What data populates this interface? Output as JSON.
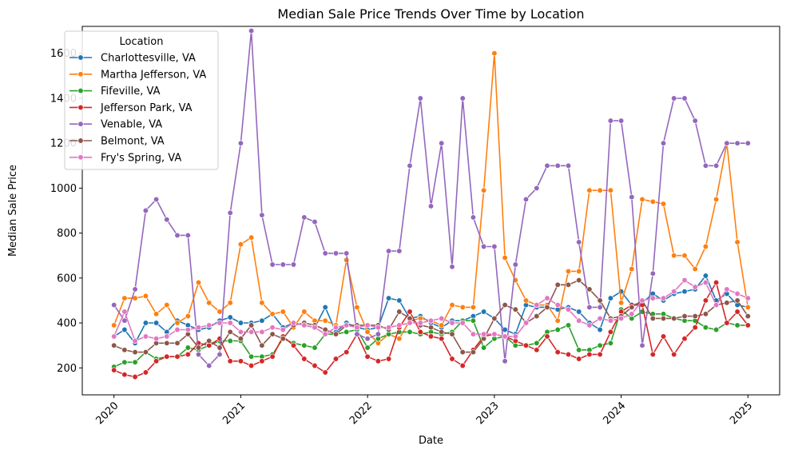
{
  "chart_data": {
    "type": "line",
    "title": "Median Sale Price Trends Over Time by Location",
    "xlabel": "Date",
    "ylabel": "Median Sale Price",
    "x_ticks": [
      "2020",
      "2021",
      "2022",
      "2023",
      "2024",
      "2025"
    ],
    "y_ticks": [
      200,
      400,
      600,
      800,
      1000,
      1200,
      1400,
      1600
    ],
    "ylim": [
      80,
      1720
    ],
    "xlim": [
      "2019-10-01",
      "2025-04-01"
    ],
    "grid": false,
    "legend": {
      "title": "Location",
      "position": "top-left"
    },
    "x": [
      "2020-01",
      "2020-02",
      "2020-03",
      "2020-04",
      "2020-05",
      "2020-06",
      "2020-07",
      "2020-08",
      "2020-09",
      "2020-10",
      "2020-11",
      "2020-12",
      "2021-01",
      "2021-02",
      "2021-03",
      "2021-04",
      "2021-05",
      "2021-06",
      "2021-07",
      "2021-08",
      "2021-09",
      "2021-10",
      "2021-11",
      "2021-12",
      "2022-01",
      "2022-02",
      "2022-03",
      "2022-04",
      "2022-05",
      "2022-06",
      "2022-07",
      "2022-08",
      "2022-09",
      "2022-10",
      "2022-11",
      "2022-12",
      "2023-01",
      "2023-02",
      "2023-03",
      "2023-04",
      "2023-05",
      "2023-06",
      "2023-07",
      "2023-08",
      "2023-09",
      "2023-10",
      "2023-11",
      "2023-12",
      "2024-01",
      "2024-02",
      "2024-03",
      "2024-04",
      "2024-05",
      "2024-06",
      "2024-07",
      "2024-08",
      "2024-09",
      "2024-10",
      "2024-11",
      "2024-12",
      "2025-01"
    ],
    "series": [
      {
        "name": "Charlottesville, VA",
        "color": "#1f77b4",
        "values": [
          340,
          370,
          310,
          400,
          400,
          360,
          410,
          390,
          370,
          380,
          410,
          425,
          400,
          400,
          410,
          440,
          380,
          400,
          390,
          380,
          470,
          360,
          400,
          380,
          370,
          380,
          510,
          500,
          420,
          430,
          400,
          380,
          410,
          410,
          430,
          450,
          420,
          370,
          350,
          480,
          470,
          470,
          460,
          470,
          450,
          400,
          370,
          510,
          540,
          480,
          490,
          530,
          500,
          530,
          540,
          550,
          610,
          500,
          530,
          480,
          470
        ]
      },
      {
        "name": "Martha Jefferson, VA",
        "color": "#ff7f0e",
        "values": [
          390,
          510,
          510,
          520,
          440,
          480,
          400,
          430,
          580,
          490,
          450,
          490,
          750,
          780,
          490,
          440,
          450,
          380,
          450,
          410,
          410,
          390,
          680,
          470,
          360,
          310,
          350,
          330,
          410,
          420,
          410,
          390,
          480,
          470,
          470,
          990,
          1600,
          690,
          590,
          500,
          480,
          480,
          410,
          630,
          630,
          990,
          990,
          990,
          490,
          640,
          950,
          940,
          930,
          700,
          700,
          640,
          740,
          950,
          1200,
          760,
          470
        ]
      },
      {
        "name": "Fifeville, VA",
        "color": "#2ca02c",
        "values": [
          205,
          225,
          225,
          270,
          240,
          250,
          250,
          290,
          280,
          300,
          320,
          320,
          320,
          250,
          250,
          260,
          330,
          310,
          300,
          290,
          350,
          350,
          360,
          370,
          290,
          330,
          350,
          360,
          360,
          350,
          360,
          350,
          360,
          410,
          410,
          290,
          330,
          340,
          300,
          300,
          310,
          360,
          370,
          390,
          280,
          280,
          300,
          310,
          460,
          420,
          450,
          440,
          440,
          420,
          410,
          410,
          380,
          370,
          400,
          390,
          390
        ]
      },
      {
        "name": "Jefferson Park, VA",
        "color": "#d62728",
        "values": [
          190,
          170,
          160,
          180,
          230,
          250,
          250,
          260,
          310,
          300,
          330,
          230,
          230,
          210,
          230,
          250,
          340,
          300,
          240,
          210,
          180,
          240,
          270,
          350,
          250,
          230,
          240,
          380,
          450,
          360,
          340,
          330,
          240,
          210,
          280,
          340,
          350,
          340,
          320,
          300,
          280,
          340,
          270,
          260,
          240,
          260,
          260,
          360,
          450,
          480,
          480,
          260,
          340,
          260,
          330,
          380,
          500,
          580,
          400,
          450,
          390
        ]
      },
      {
        "name": "Venable, VA",
        "color": "#9467bd",
        "values": [
          480,
          410,
          550,
          900,
          950,
          860,
          790,
          790,
          260,
          210,
          260,
          890,
          1200,
          1700,
          880,
          660,
          660,
          660,
          870,
          850,
          710,
          710,
          710,
          350,
          330,
          350,
          720,
          720,
          1100,
          1400,
          920,
          1200,
          650,
          1400,
          870,
          740,
          740,
          230,
          660,
          950,
          1000,
          1100,
          1100,
          1100,
          760,
          470,
          470,
          1300,
          1300,
          960,
          300,
          620,
          1200,
          1400,
          1400,
          1300,
          1100,
          1100,
          1200,
          1200,
          1200
        ]
      },
      {
        "name": "Belmont, VA",
        "color": "#8c564b",
        "values": [
          300,
          280,
          270,
          270,
          310,
          310,
          310,
          350,
          290,
          320,
          290,
          360,
          330,
          390,
          300,
          350,
          330,
          390,
          400,
          390,
          370,
          350,
          390,
          390,
          390,
          390,
          370,
          450,
          420,
          390,
          380,
          360,
          350,
          270,
          270,
          330,
          420,
          480,
          460,
          400,
          430,
          470,
          570,
          570,
          590,
          550,
          500,
          420,
          430,
          470,
          500,
          420,
          420,
          420,
          430,
          430,
          440,
          480,
          490,
          500,
          430
        ]
      },
      {
        "name": "Fry's Spring, VA",
        "color": "#e377c2",
        "values": [
          340,
          450,
          320,
          340,
          330,
          340,
          370,
          370,
          380,
          390,
          400,
          400,
          360,
          360,
          360,
          380,
          370,
          400,
          390,
          380,
          350,
          380,
          390,
          380,
          390,
          380,
          380,
          390,
          400,
          400,
          410,
          420,
          400,
          400,
          350,
          350,
          350,
          340,
          340,
          400,
          480,
          510,
          480,
          460,
          410,
          390,
          420,
          410,
          420,
          440,
          500,
          510,
          510,
          540,
          590,
          560,
          580,
          480,
          550,
          530,
          510
        ]
      }
    ]
  }
}
